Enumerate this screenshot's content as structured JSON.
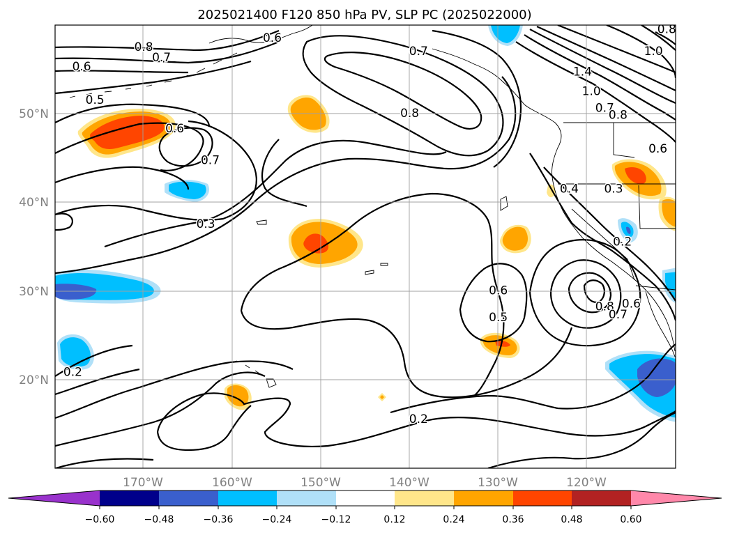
{
  "title": "2025021400 F120 850 hPa PV, SLP PC (2025022000)",
  "map": {
    "lon_ticks": [
      "170°W",
      "160°W",
      "150°W",
      "140°W",
      "130°W",
      "120°W"
    ],
    "lat_ticks": [
      "50°N",
      "40°N",
      "30°N",
      "20°N"
    ],
    "lon_range": [
      -180,
      -110
    ],
    "lat_range": [
      10,
      60
    ],
    "grid": true
  },
  "colorbar": {
    "ticks": [
      "−0.60",
      "−0.48",
      "−0.36",
      "−0.24",
      "−0.12",
      "0.12",
      "0.24",
      "0.36",
      "0.48",
      "0.60"
    ],
    "colors": [
      "#9932cc",
      "#00008b",
      "#3a5fcd",
      "#00bfff",
      "#b0e0f8",
      "#ffffff",
      "#ffe68a",
      "#ffa500",
      "#ff4500",
      "#b22222",
      "#ff88aa"
    ]
  },
  "contour_labels": [
    {
      "text": "0.8",
      "lon": -170.0,
      "lat": 57.5
    },
    {
      "text": "0.7",
      "lon": -168.0,
      "lat": 56.3
    },
    {
      "text": "0.6",
      "lon": -177.0,
      "lat": 55.3
    },
    {
      "text": "0.6",
      "lon": -166.5,
      "lat": 48.3
    },
    {
      "text": "0.7",
      "lon": -162.5,
      "lat": 44.7
    },
    {
      "text": "0.5",
      "lon": -175.5,
      "lat": 51.5
    },
    {
      "text": "0.3",
      "lon": -163.0,
      "lat": 37.5
    },
    {
      "text": "0.2",
      "lon": -178.0,
      "lat": 20.8
    },
    {
      "text": "0.7",
      "lon": -139.0,
      "lat": 57.0
    },
    {
      "text": "0.8",
      "lon": -140.0,
      "lat": 50.0
    },
    {
      "text": "0.6",
      "lon": -155.5,
      "lat": 58.5
    },
    {
      "text": "1.4",
      "lon": -120.5,
      "lat": 54.7
    },
    {
      "text": "1.0",
      "lon": -119.5,
      "lat": 52.5
    },
    {
      "text": "0.7",
      "lon": -118.0,
      "lat": 50.6
    },
    {
      "text": "0.8",
      "lon": -116.5,
      "lat": 49.8
    },
    {
      "text": "0.6",
      "lon": -112.0,
      "lat": 46.0
    },
    {
      "text": "1.0",
      "lon": -112.5,
      "lat": 57.0
    },
    {
      "text": "0.8",
      "lon": -111.0,
      "lat": 59.5
    },
    {
      "text": "0.4",
      "lon": -122.0,
      "lat": 41.5
    },
    {
      "text": "0.3",
      "lon": -117.0,
      "lat": 41.5
    },
    {
      "text": "0.2",
      "lon": -116.0,
      "lat": 35.5
    },
    {
      "text": "0.6",
      "lon": -130.0,
      "lat": 30.0
    },
    {
      "text": "0.5",
      "lon": -130.0,
      "lat": 27.0
    },
    {
      "text": "0.8",
      "lon": -118.0,
      "lat": 28.2
    },
    {
      "text": "0.7",
      "lon": -116.5,
      "lat": 27.3
    },
    {
      "text": "0.6",
      "lon": -115.0,
      "lat": 28.5
    },
    {
      "text": "0.2",
      "lon": -139.0,
      "lat": 15.5
    }
  ]
}
